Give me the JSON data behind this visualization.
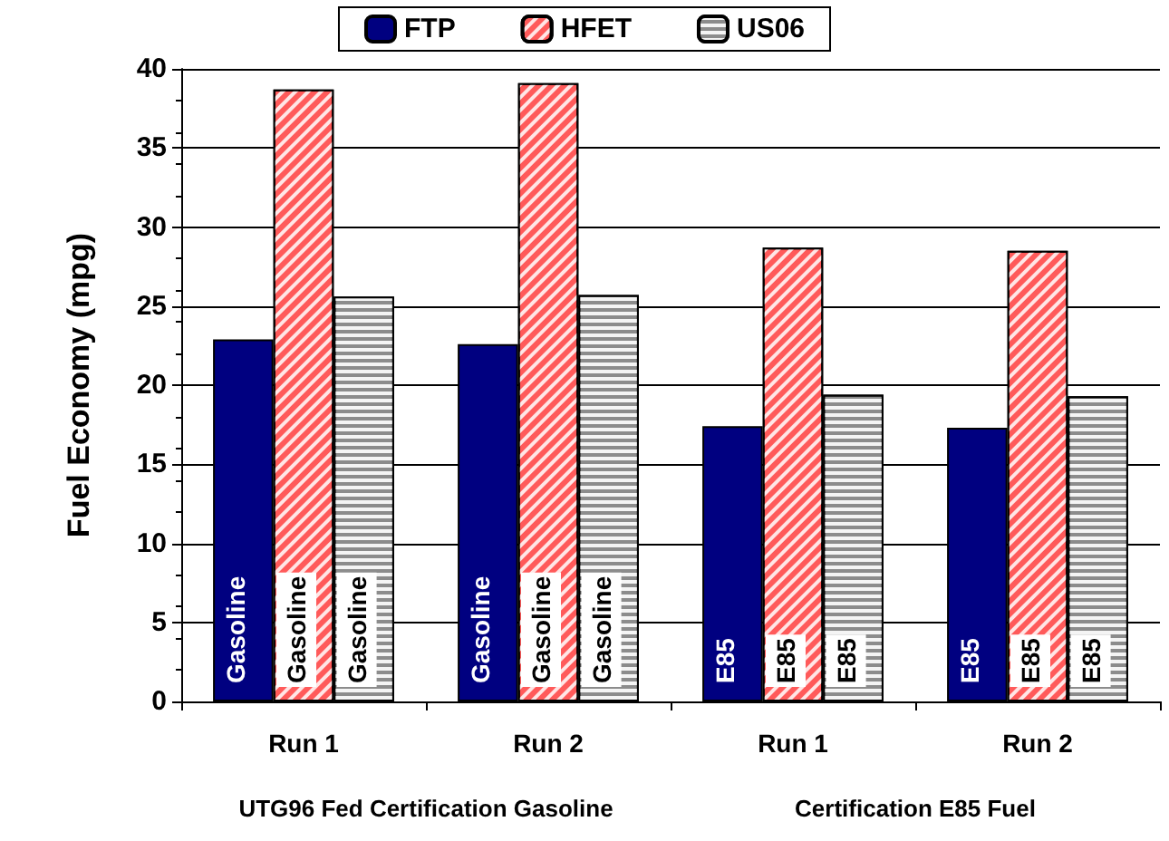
{
  "chart_data": {
    "type": "bar",
    "ylabel": "Fuel Economy (mpg)",
    "categories": [
      "Run 1",
      "Run 2",
      "Run 1",
      "Run 2"
    ],
    "series": [
      {
        "name": "FTP",
        "color": "#000080",
        "values": [
          22.9,
          22.6,
          17.4,
          17.3
        ],
        "value_labels": [
          "Gasoline",
          "Gasoline",
          "E85",
          "E85"
        ]
      },
      {
        "name": "HFET",
        "color": "#ff5a5a",
        "values": [
          38.7,
          39.1,
          28.7,
          28.5
        ],
        "value_labels": [
          "Gasoline",
          "Gasoline",
          "E85",
          "E85"
        ]
      },
      {
        "name": "US06",
        "color": "#8c8c8c",
        "values": [
          25.6,
          25.7,
          19.4,
          19.3
        ],
        "value_labels": [
          "Gasoline",
          "Gasoline",
          "E85",
          "E85"
        ]
      }
    ],
    "ylim": [
      0,
      40
    ],
    "yticks": [
      0,
      5,
      10,
      15,
      20,
      25,
      30,
      35,
      40
    ],
    "grid": "y",
    "legend": "top",
    "annotations": [
      "UTG96 Fed Certification Gasoline",
      "Certification E85 Fuel"
    ]
  }
}
